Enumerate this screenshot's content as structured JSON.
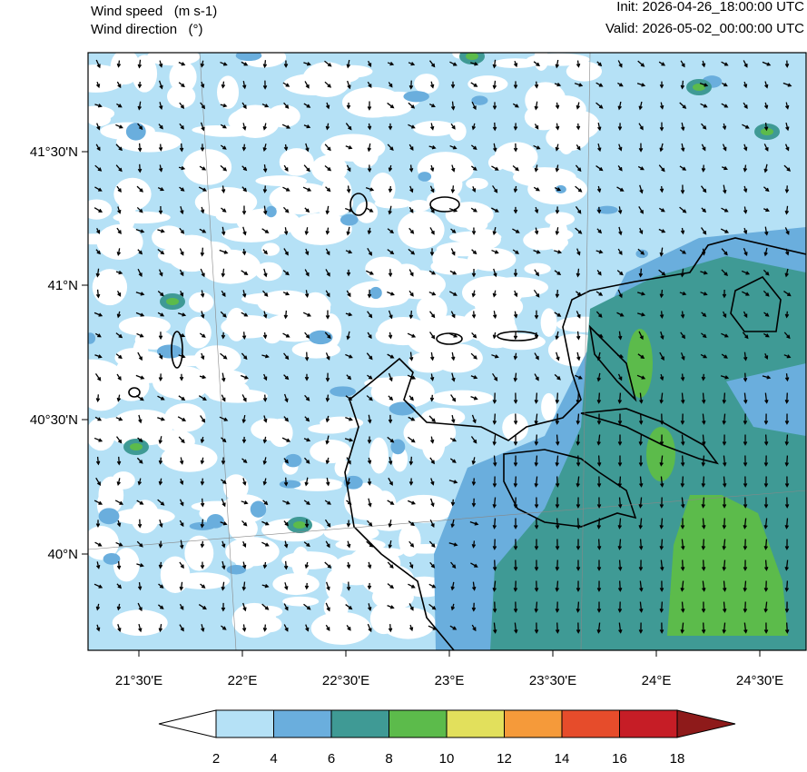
{
  "header": {
    "left": [
      "Wind speed   (m s-1)",
      "Wind direction   (°)"
    ],
    "right": [
      "Init: 2026-04-26_18:00:00 UTC",
      "Valid: 2026-05-02_00:00:00 UTC"
    ]
  },
  "axes": {
    "lat_labels": [
      "41°30'N",
      "41°N",
      "40°30'N",
      "40°N"
    ],
    "lon_labels": [
      "21°30'E",
      "22°E",
      "22°30'E",
      "23°E",
      "23°30'E",
      "24°E",
      "24°30'E"
    ]
  },
  "colorbar": {
    "levels": [
      2,
      4,
      6,
      8,
      10,
      12,
      14,
      16,
      18
    ],
    "colors": [
      "#ffffff",
      "#b5e1f6",
      "#6aaedd",
      "#3f9a95",
      "#5cbb4b",
      "#e2e05c",
      "#f59a3a",
      "#e64c2b",
      "#c61d26",
      "#8e1a1a"
    ]
  }
}
